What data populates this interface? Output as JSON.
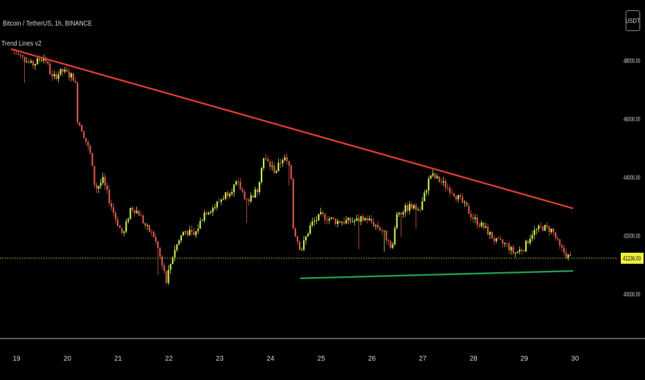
{
  "symbol_title": "Bitcoin / TetherUS, 1h, BINANCE",
  "indicator_label": "Trend Lines v2",
  "currency": "USDT",
  "colors": {
    "background": "#000000",
    "up": "#c6f24e",
    "down": "#d8584a",
    "resistance": "#e03b36",
    "support": "#1fa24e",
    "price_line": "#e8d54a",
    "price_tag": "#f2f23c"
  },
  "chart_data": {
    "type": "candlestick",
    "symbol": "BTC/USDT",
    "interval": "1h",
    "exchange": "BINANCE",
    "x_ticks": [
      "19",
      "20",
      "21",
      "22",
      "23",
      "24",
      "25",
      "26",
      "27",
      "28",
      "29",
      "30"
    ],
    "y_ticks": [
      "48000.00",
      "46000.00",
      "44000.00",
      "42000.00",
      "40000.00"
    ],
    "ylim": [
      39300,
      49200
    ],
    "last_price": 41236.0,
    "last_price_label": "41236.00",
    "grid": false,
    "close_path": [
      {
        "day": 19.0,
        "price": 48250
      },
      {
        "day": 19.3,
        "price": 47850
      },
      {
        "day": 19.55,
        "price": 48150
      },
      {
        "day": 19.7,
        "price": 47400
      },
      {
        "day": 19.9,
        "price": 47650
      },
      {
        "day": 20.15,
        "price": 47400
      },
      {
        "day": 20.2,
        "price": 46000
      },
      {
        "day": 20.3,
        "price": 45600
      },
      {
        "day": 20.45,
        "price": 44800
      },
      {
        "day": 20.55,
        "price": 43600
      },
      {
        "day": 20.7,
        "price": 43900
      },
      {
        "day": 20.85,
        "price": 43100
      },
      {
        "day": 20.95,
        "price": 42600
      },
      {
        "day": 21.1,
        "price": 42000
      },
      {
        "day": 21.25,
        "price": 43000
      },
      {
        "day": 21.4,
        "price": 42800
      },
      {
        "day": 21.55,
        "price": 42300
      },
      {
        "day": 21.7,
        "price": 42000
      },
      {
        "day": 21.85,
        "price": 41200
      },
      {
        "day": 21.95,
        "price": 40500
      },
      {
        "day": 22.1,
        "price": 41500
      },
      {
        "day": 22.3,
        "price": 42200
      },
      {
        "day": 22.5,
        "price": 42000
      },
      {
        "day": 22.7,
        "price": 42800
      },
      {
        "day": 22.9,
        "price": 43000
      },
      {
        "day": 23.1,
        "price": 43400
      },
      {
        "day": 23.35,
        "price": 43800
      },
      {
        "day": 23.55,
        "price": 43200
      },
      {
        "day": 23.75,
        "price": 43600
      },
      {
        "day": 23.85,
        "price": 44700
      },
      {
        "day": 24.1,
        "price": 44200
      },
      {
        "day": 24.25,
        "price": 44700
      },
      {
        "day": 24.4,
        "price": 44300
      },
      {
        "day": 24.45,
        "price": 42300
      },
      {
        "day": 24.6,
        "price": 41500
      },
      {
        "day": 24.8,
        "price": 42400
      },
      {
        "day": 25.0,
        "price": 42700
      },
      {
        "day": 25.3,
        "price": 42500
      },
      {
        "day": 25.6,
        "price": 42500
      },
      {
        "day": 25.9,
        "price": 42600
      },
      {
        "day": 26.2,
        "price": 42200
      },
      {
        "day": 26.4,
        "price": 41600
      },
      {
        "day": 26.5,
        "price": 42800
      },
      {
        "day": 26.75,
        "price": 43000
      },
      {
        "day": 26.95,
        "price": 42900
      },
      {
        "day": 27.15,
        "price": 44100
      },
      {
        "day": 27.4,
        "price": 43800
      },
      {
        "day": 27.6,
        "price": 43500
      },
      {
        "day": 27.8,
        "price": 43100
      },
      {
        "day": 28.0,
        "price": 42600
      },
      {
        "day": 28.2,
        "price": 42300
      },
      {
        "day": 28.45,
        "price": 41800
      },
      {
        "day": 28.65,
        "price": 41700
      },
      {
        "day": 28.8,
        "price": 41400
      },
      {
        "day": 29.0,
        "price": 41600
      },
      {
        "day": 29.15,
        "price": 42100
      },
      {
        "day": 29.35,
        "price": 42300
      },
      {
        "day": 29.55,
        "price": 42200
      },
      {
        "day": 29.7,
        "price": 41600
      },
      {
        "day": 29.9,
        "price": 41236
      }
    ],
    "trend_lines": [
      {
        "name": "resistance",
        "from": {
          "day": 18.9,
          "price": 48400
        },
        "to": {
          "day": 29.95,
          "price": 42950
        }
      },
      {
        "name": "support",
        "from": {
          "day": 24.6,
          "price": 40550
        },
        "to": {
          "day": 29.95,
          "price": 40800
        }
      }
    ]
  }
}
